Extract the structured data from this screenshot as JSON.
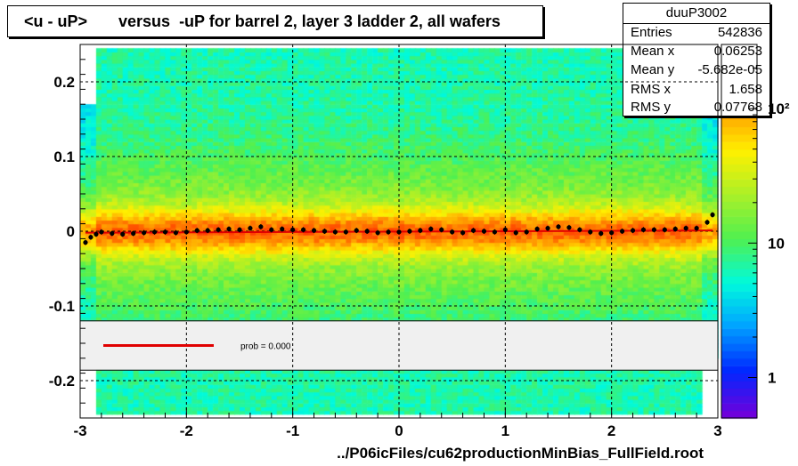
{
  "chart_data": {
    "type": "heatmap",
    "title": "<u - uP>       versus  -uP for barrel 2, layer 3 ladder 2, all wafers",
    "xlabel": "../P06icFiles/cu62productionMinBias_FullField.root",
    "ylabel": "",
    "xlim": [
      -3,
      3
    ],
    "ylim": [
      -0.25,
      0.25
    ],
    "x_ticks": [
      "-3",
      "-2",
      "-1",
      "0",
      "1",
      "2",
      "3"
    ],
    "y_ticks": [
      "-0.2",
      "-0.1",
      "0",
      "0.1",
      "0.2"
    ],
    "grid": true,
    "colorbar": {
      "scale": "log",
      "tick_labels": [
        "1",
        "10",
        "10²"
      ],
      "range": [
        0.5,
        300
      ]
    },
    "stats": {
      "name": "duuP3002",
      "rows": [
        {
          "label": "Entries",
          "value": "542836"
        },
        {
          "label": "Mean x",
          "value": "0.06253"
        },
        {
          "label": "Mean y",
          "value": "-5.682e-05"
        },
        {
          "label": "RMS x",
          "value": "1.658"
        },
        {
          "label": "RMS y",
          "value": "0.07768"
        }
      ]
    },
    "fit_legend": {
      "label": "prob = 0.000",
      "line_color": "#e00000"
    },
    "profile": {
      "x": [
        -2.95,
        -2.9,
        -2.85,
        -2.8,
        -2.7,
        -2.6,
        -2.5,
        -2.4,
        -2.3,
        -2.2,
        -2.1,
        -2.0,
        -1.9,
        -1.8,
        -1.7,
        -1.6,
        -1.5,
        -1.4,
        -1.3,
        -1.2,
        -1.1,
        -1.0,
        -0.9,
        -0.8,
        -0.7,
        -0.6,
        -0.5,
        -0.4,
        -0.3,
        -0.2,
        -0.1,
        0.0,
        0.1,
        0.2,
        0.3,
        0.4,
        0.5,
        0.6,
        0.7,
        0.8,
        0.9,
        1.0,
        1.1,
        1.2,
        1.3,
        1.4,
        1.5,
        1.6,
        1.7,
        1.8,
        1.9,
        2.0,
        2.1,
        2.2,
        2.3,
        2.4,
        2.5,
        2.6,
        2.7,
        2.8,
        2.9,
        2.95
      ],
      "y": [
        -0.015,
        -0.008,
        -0.004,
        -0.001,
        -0.003,
        -0.004,
        -0.003,
        -0.002,
        -0.001,
        -0.001,
        -0.002,
        -0.001,
        0.001,
        0.001,
        0.002,
        0.003,
        0.002,
        0.004,
        0.006,
        0.002,
        0.003,
        0.002,
        0.002,
        0.001,
        0.0,
        -0.001,
        -0.001,
        0.001,
        0.0,
        -0.002,
        -0.001,
        -0.001,
        0.0,
        0.001,
        0.003,
        0.002,
        -0.001,
        -0.002,
        0.001,
        0.0,
        -0.001,
        0.002,
        -0.002,
        -0.001,
        0.003,
        0.004,
        0.006,
        0.005,
        0.002,
        -0.001,
        -0.003,
        -0.002,
        0.0,
        0.001,
        0.002,
        0.002,
        0.002,
        0.003,
        0.004,
        0.004,
        0.012,
        0.022
      ]
    }
  }
}
